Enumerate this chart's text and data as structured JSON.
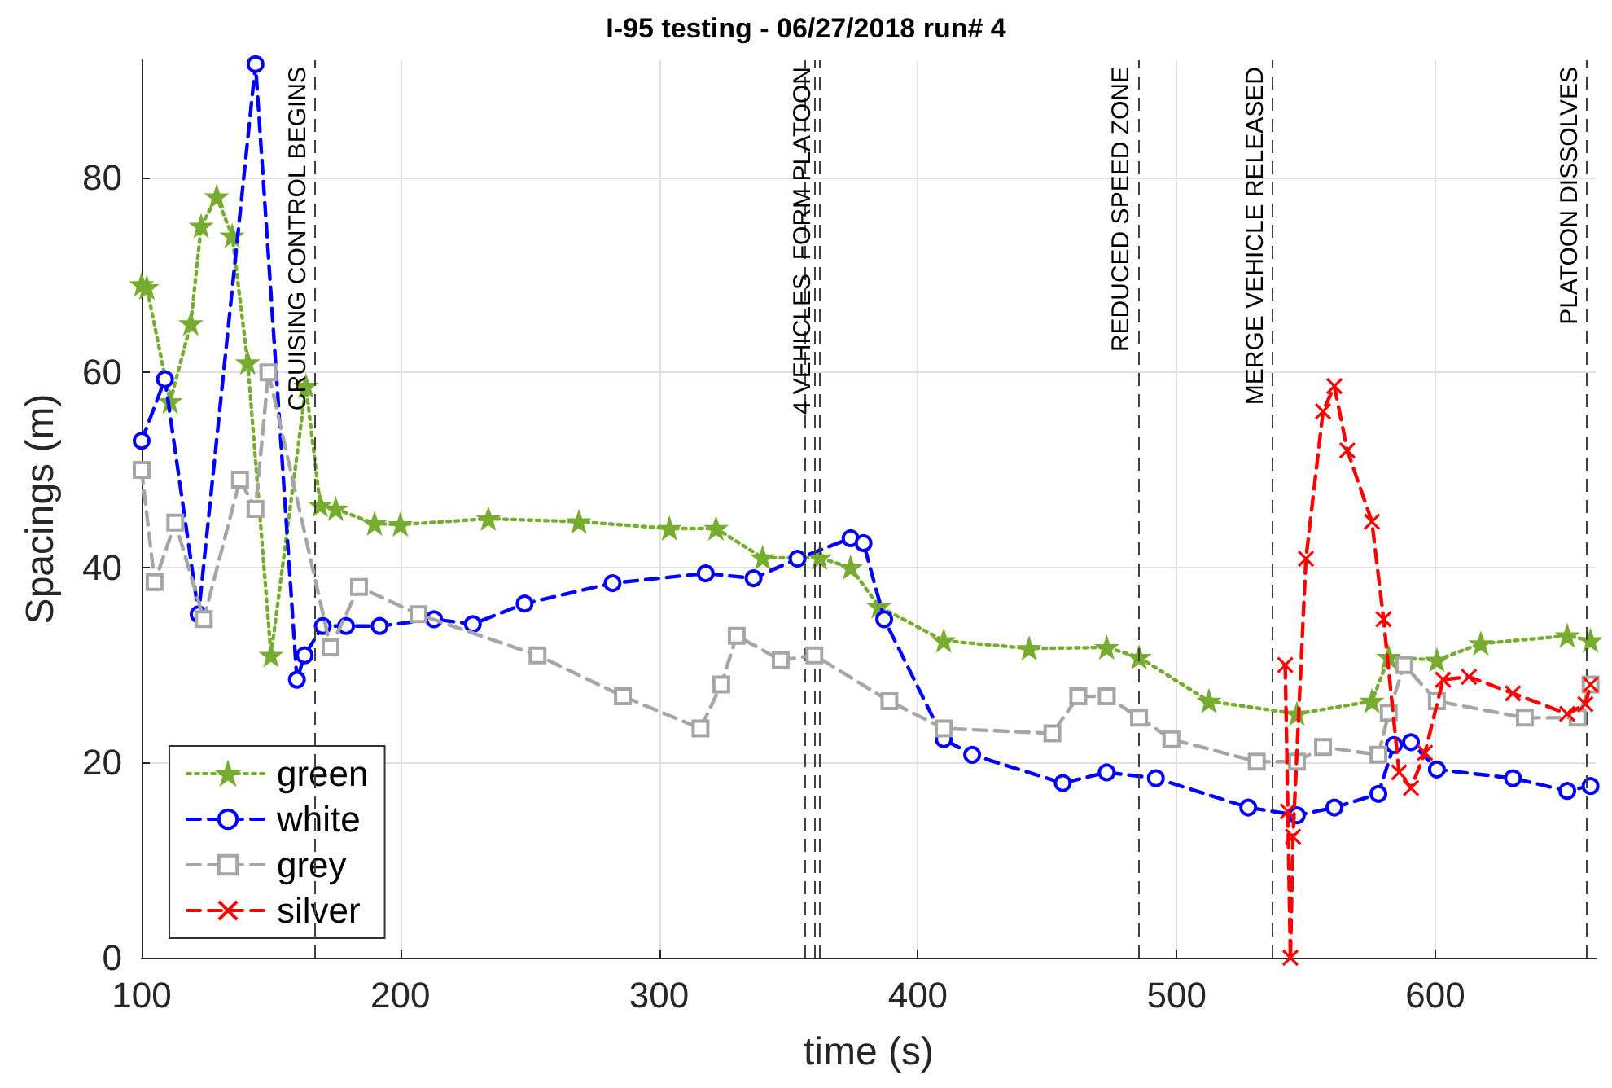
{
  "chart_data": {
    "type": "line",
    "title": "I-95 testing - 06/27/2018 run# 4",
    "xlabel": "time (s)",
    "ylabel": "Spacings (m)",
    "xlim": [
      100,
      662
    ],
    "xticks": [
      100,
      200,
      300,
      400,
      500,
      600
    ],
    "ylim": [
      0,
      92
    ],
    "yticks": [
      0,
      20,
      40,
      60,
      80
    ],
    "grid": true,
    "legend": "bottom left",
    "series": [
      {
        "name": "green",
        "color": "#77ac30",
        "marker": "star",
        "line_style": "dotted",
        "x": [
          100,
          102,
          111,
          119,
          123,
          129,
          135,
          141,
          150,
          163.5,
          169,
          175,
          190,
          200,
          234,
          269,
          304,
          322,
          340,
          362,
          374,
          385,
          410,
          443,
          473,
          485.5,
          512.5,
          546.5,
          575.5,
          582,
          600.6,
          617.6,
          651,
          660
        ],
        "values": [
          69,
          68.7,
          57,
          65,
          75,
          78,
          74,
          61,
          31,
          58.6,
          46.4,
          46,
          44.5,
          44.4,
          45,
          44.7,
          44,
          44,
          41,
          41,
          40,
          36,
          32.5,
          31.7,
          31.8,
          30.8,
          26.3,
          25,
          26.3,
          30.8,
          30.5,
          32.2,
          33,
          32.5
        ]
      },
      {
        "name": "white",
        "color": "#0000ff",
        "marker": "circle",
        "line_style": "dashed",
        "x": [
          100,
          109,
          122,
          144,
          160,
          163,
          170,
          179,
          192,
          213,
          228,
          248,
          282,
          318,
          336.5,
          353.5,
          374,
          379,
          387,
          410,
          421,
          456,
          473,
          492,
          527.7,
          546.5,
          561,
          578,
          584,
          590.6,
          600.6,
          630,
          651,
          660
        ],
        "values": [
          53,
          59.3,
          35.2,
          91.6,
          28.5,
          31,
          34,
          34,
          34,
          34.7,
          34.2,
          36.3,
          38.4,
          39.4,
          38.9,
          40.9,
          43,
          42.5,
          34.7,
          22.4,
          20.8,
          17.9,
          19,
          18.4,
          15.4,
          14.6,
          15.4,
          16.8,
          21.8,
          22.1,
          19.3,
          18.4,
          17.1,
          17.6
        ]
      },
      {
        "name": "grey",
        "color": "#a6a6a6",
        "marker": "square",
        "line_style": "dashed",
        "x": [
          100,
          105,
          113,
          124,
          138,
          144,
          149,
          173,
          184,
          207,
          253,
          286,
          316,
          324,
          330,
          347,
          360,
          389,
          410,
          452,
          462,
          473,
          485.5,
          498,
          531,
          546.5,
          556.6,
          578,
          582,
          588,
          600.6,
          634.6,
          655,
          660
        ],
        "values": [
          50,
          38.5,
          44.6,
          34.7,
          49,
          46,
          60,
          31.8,
          38,
          35.2,
          31,
          26.8,
          23.5,
          28,
          33,
          30.5,
          31,
          26.3,
          23.5,
          23,
          26.8,
          26.8,
          24.6,
          22.4,
          20.1,
          20.1,
          21.6,
          20.8,
          25.1,
          30,
          26.3,
          24.6,
          24.6,
          28
        ]
      },
      {
        "name": "silver",
        "color": "#ff0000",
        "marker": "cross",
        "line_style": "dashed",
        "x": [
          542,
          543,
          544,
          545,
          550,
          556.6,
          561,
          566,
          575.5,
          580,
          586,
          590.6,
          596,
          603,
          613,
          630,
          651,
          658,
          660
        ],
        "values": [
          30,
          15,
          0,
          12.4,
          40.9,
          56,
          58.6,
          52,
          44.7,
          34.7,
          19,
          17.4,
          21,
          28.5,
          28.8,
          27.1,
          25,
          26,
          28
        ]
      }
    ],
    "ref_lines": [
      {
        "axis": "x",
        "value": 167,
        "label": "CRUISING CONTROL BEGINS",
        "color": "#404040",
        "line_style": "dashed"
      },
      {
        "axis": "x",
        "value": 356,
        "color": "#404040",
        "line_style": "dashed"
      },
      {
        "axis": "x",
        "value": 360,
        "color": "#404040",
        "line_style": "dashed"
      },
      {
        "axis": "x",
        "value": 362,
        "label": "4 VEHICLES  FORM PLATOON",
        "color": "#404040",
        "line_style": "dashed"
      },
      {
        "axis": "x",
        "value": 485,
        "label": "REDUCED SPEED ZONE",
        "color": "#404040",
        "line_style": "dashed"
      },
      {
        "axis": "x",
        "value": 537,
        "label": "MERGE VEHICLE RELEASED",
        "color": "#404040",
        "line_style": "dashed"
      },
      {
        "axis": "x",
        "value": 658.5,
        "label": "PLATOON DISSOLVES",
        "color": "#404040",
        "line_style": "dashed"
      }
    ]
  }
}
